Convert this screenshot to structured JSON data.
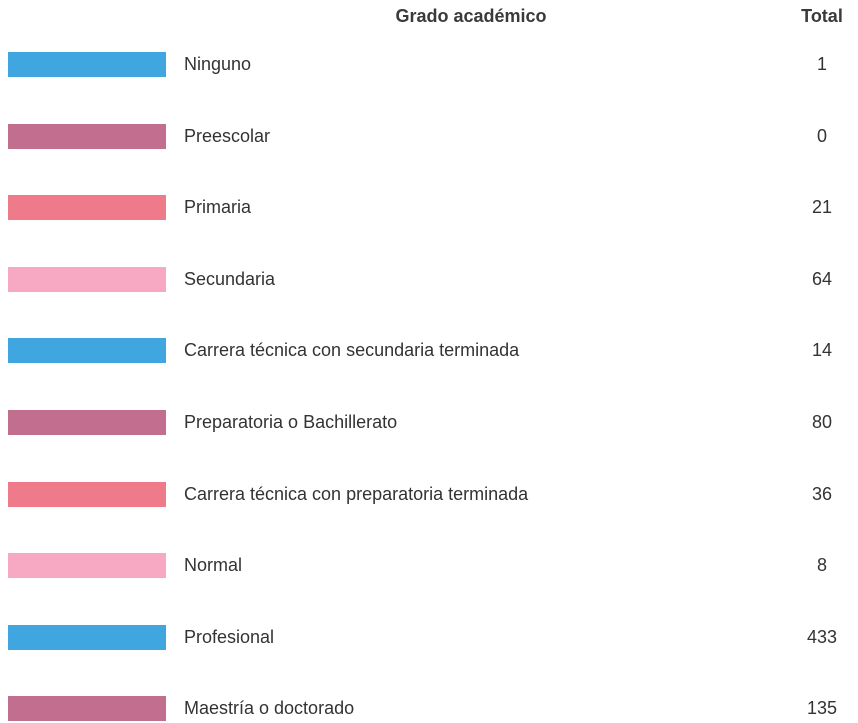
{
  "table": {
    "headers": [
      "Grado académico",
      "Total"
    ],
    "rows": [
      {
        "label": "Ninguno",
        "total": "1",
        "color": "#3fa6e0"
      },
      {
        "label": "Preescolar",
        "total": "0",
        "color": "#c26f8f"
      },
      {
        "label": "Primaria",
        "total": "21",
        "color": "#ef7a8a"
      },
      {
        "label": "Secundaria",
        "total": "64",
        "color": "#f7a9c4"
      },
      {
        "label": "Carrera técnica con secundaria terminada",
        "total": "14",
        "color": "#3fa6e0"
      },
      {
        "label": "Preparatoria o Bachillerato",
        "total": "80",
        "color": "#c26f8f"
      },
      {
        "label": "Carrera técnica con preparatoria terminada",
        "total": "36",
        "color": "#ef7a8a"
      },
      {
        "label": "Normal",
        "total": "8",
        "color": "#f7a9c4"
      },
      {
        "label": "Profesional",
        "total": "433",
        "color": "#3fa6e0"
      },
      {
        "label": "Maestría o doctorado",
        "total": "135",
        "color": "#c26f8f"
      }
    ]
  }
}
